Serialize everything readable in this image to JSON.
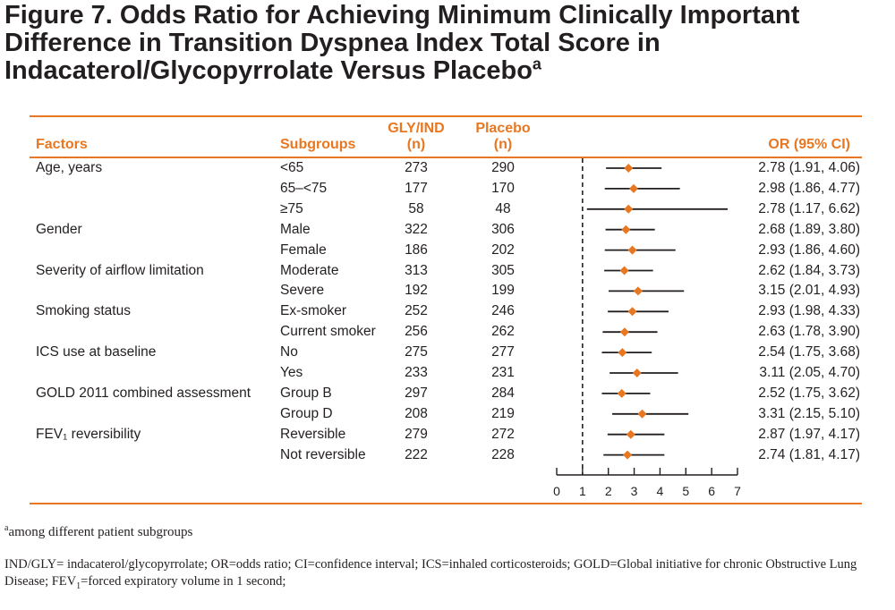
{
  "title": {
    "text": "Figure 7. Odds Ratio for Achieving Minimum Clinically Important Difference in Transition Dyspnea Index Total Score in Indacaterol/Glycopyrrolate Versus Placebo",
    "superscript": "a"
  },
  "headers": {
    "factors": "Factors",
    "subgroups": "Subgroups",
    "gly_ind_line1": "GLY/IND",
    "gly_ind_line2": "(n)",
    "placebo_line1": "Placebo",
    "placebo_line2": "(n)",
    "or_ci": "OR (95% CI)"
  },
  "factors": [
    {
      "label": "Age, years",
      "row": 0
    },
    {
      "label": "Gender",
      "row": 3
    },
    {
      "label": "Severity of airflow limitation",
      "row": 5
    },
    {
      "label": "Smoking status",
      "row": 7
    },
    {
      "label": "ICS use at baseline",
      "row": 9
    },
    {
      "label": "GOLD 2011 combined assessment",
      "row": 11
    },
    {
      "label": "FEV₁ reversibility",
      "row": 13
    }
  ],
  "rows": [
    {
      "subgroup": "<65",
      "gly_ind_n": "273",
      "placebo_n": "290",
      "or_ci": "2.78 (1.91, 4.06)"
    },
    {
      "subgroup": "65–<75",
      "gly_ind_n": "177",
      "placebo_n": "170",
      "or_ci": "2.98 (1.86, 4.77)"
    },
    {
      "subgroup": "≥75",
      "gly_ind_n": "58",
      "placebo_n": "48",
      "or_ci": "2.78 (1.17, 6.62)"
    },
    {
      "subgroup": "Male",
      "gly_ind_n": "322",
      "placebo_n": "306",
      "or_ci": "2.68 (1.89, 3.80)"
    },
    {
      "subgroup": "Female",
      "gly_ind_n": "186",
      "placebo_n": "202",
      "or_ci": "2.93 (1.86, 4.60)"
    },
    {
      "subgroup": "Moderate",
      "gly_ind_n": "313",
      "placebo_n": "305",
      "or_ci": "2.62 (1.84, 3.73)"
    },
    {
      "subgroup": "Severe",
      "gly_ind_n": "192",
      "placebo_n": "199",
      "or_ci": "3.15 (2.01, 4.93)"
    },
    {
      "subgroup": "Ex-smoker",
      "gly_ind_n": "252",
      "placebo_n": "246",
      "or_ci": "2.93 (1.98, 4.33)"
    },
    {
      "subgroup": "Current smoker",
      "gly_ind_n": "256",
      "placebo_n": "262",
      "or_ci": "2.63 (1.78, 3.90)"
    },
    {
      "subgroup": "No",
      "gly_ind_n": "275",
      "placebo_n": "277",
      "or_ci": "2.54 (1.75, 3.68)"
    },
    {
      "subgroup": "Yes",
      "gly_ind_n": "233",
      "placebo_n": "231",
      "or_ci": "3.11 (2.05, 4.70)"
    },
    {
      "subgroup": "Group B",
      "gly_ind_n": "297",
      "placebo_n": "284",
      "or_ci": "2.52 (1.75, 3.62)"
    },
    {
      "subgroup": "Group D",
      "gly_ind_n": "208",
      "placebo_n": "219",
      "or_ci": "3.31 (2.15, 5.10)"
    },
    {
      "subgroup": "Reversible",
      "gly_ind_n": "279",
      "placebo_n": "272",
      "or_ci": "2.87 (1.97, 4.17)"
    },
    {
      "subgroup": "Not reversible",
      "gly_ind_n": "222",
      "placebo_n": "228",
      "or_ci": "2.74 (1.81, 4.17)"
    }
  ],
  "chart_data": {
    "type": "forest",
    "categories": [
      "<65",
      "65–<75",
      "≥75",
      "Male",
      "Female",
      "Moderate",
      "Severe",
      "Ex-smoker",
      "Current smoker",
      "No",
      "Yes",
      "Group B",
      "Group D",
      "Reversible",
      "Not reversible"
    ],
    "or": [
      2.78,
      2.98,
      2.78,
      2.68,
      2.93,
      2.62,
      3.15,
      2.93,
      2.63,
      2.54,
      3.11,
      2.52,
      3.31,
      2.87,
      2.74
    ],
    "ci_low": [
      1.91,
      1.86,
      1.17,
      1.89,
      1.86,
      1.84,
      2.01,
      1.98,
      1.78,
      1.75,
      2.05,
      1.75,
      2.15,
      1.97,
      1.81
    ],
    "ci_high": [
      4.06,
      4.77,
      6.62,
      3.8,
      4.6,
      3.73,
      4.93,
      4.33,
      3.9,
      3.68,
      4.7,
      3.62,
      5.1,
      4.17,
      4.17
    ],
    "xlim": [
      0,
      7
    ],
    "xticks": [
      "0",
      "1",
      "2",
      "3",
      "4",
      "5",
      "6",
      "7"
    ],
    "reference_line": 1,
    "marker_color": "#e87722",
    "line_color": "#231f20"
  },
  "footnotes": {
    "a_marker": "a",
    "a_text": "among different patient subgroups",
    "abbreviations_part1": "IND/GLY= indacaterol/glycopyrrolate; OR=odds ratio; CI=confidence interval; ICS=inhaled corticosteroids; GOLD=Global initiative for chronic Obstructive Lung Disease; FEV",
    "abbreviations_sub": "1",
    "abbreviations_part2": "=forced expiratory volume in 1 second;"
  }
}
